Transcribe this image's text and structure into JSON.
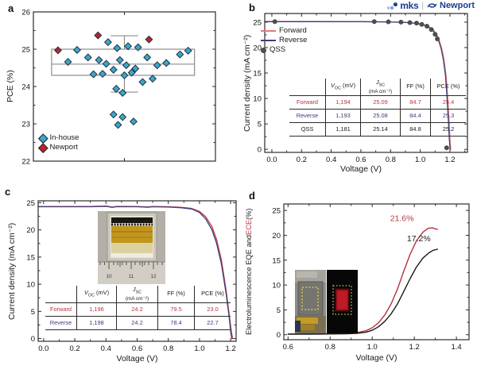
{
  "figure": {
    "panel_labels": {
      "a": "a",
      "b": "b",
      "c": "c",
      "d": "d"
    },
    "logo": {
      "mks_text": "mks",
      "separator": "|",
      "newport_text": "Newport",
      "color": "#1b3e8f"
    }
  },
  "chart_data": [
    {
      "id": "a",
      "type": "scatter",
      "ylabel": "PCE (%)",
      "xlabel": "",
      "xlim": [
        0,
        1
      ],
      "ylim": [
        22,
        26
      ],
      "yticks": [
        22,
        23,
        24,
        25,
        26
      ],
      "yminor": [
        22.5,
        23.5,
        24.5,
        25.5
      ],
      "xticks": [
        0.5
      ],
      "xlabels": false,
      "rect": {
        "l": 42,
        "t": 15,
        "r": 271,
        "b": 203
      },
      "box": {
        "left": 0.1,
        "right": 0.885,
        "center": 0.5,
        "cap": 0.075,
        "q1": 24.3,
        "median": 24.6,
        "q3": 25.0,
        "lo": 23.85,
        "hi": 25.36
      },
      "series": [
        {
          "name": "In-house",
          "marker": "diamond",
          "color": "#3ba6cf",
          "edge": "#22313b",
          "points": [
            [
              0.24,
              24.98
            ],
            [
              0.19,
              24.66
            ],
            [
              0.3,
              24.78
            ],
            [
              0.33,
              24.33
            ],
            [
              0.36,
              24.71
            ],
            [
              0.38,
              24.34
            ],
            [
              0.4,
              24.61
            ],
            [
              0.41,
              25.19
            ],
            [
              0.44,
              24.45
            ],
            [
              0.46,
              25.03
            ],
            [
              0.475,
              24.71
            ],
            [
              0.5,
              24.3
            ],
            [
              0.51,
              24.57
            ],
            [
              0.52,
              25.08
            ],
            [
              0.54,
              24.37
            ],
            [
              0.56,
              24.48
            ],
            [
              0.575,
              25.05
            ],
            [
              0.6,
              24.12
            ],
            [
              0.625,
              24.78
            ],
            [
              0.655,
              24.21
            ],
            [
              0.68,
              24.57
            ],
            [
              0.73,
              24.63
            ],
            [
              0.805,
              24.86
            ],
            [
              0.85,
              24.96
            ],
            [
              0.455,
              23.94
            ],
            [
              0.49,
              23.83
            ],
            [
              0.44,
              23.25
            ],
            [
              0.49,
              23.18
            ],
            [
              0.465,
              22.97
            ],
            [
              0.55,
              23.06
            ]
          ]
        },
        {
          "name": "Newport",
          "marker": "diamond",
          "color": "#c0222f",
          "edge": "#22313b",
          "points": [
            [
              0.135,
              24.97
            ],
            [
              0.355,
              25.37
            ],
            [
              0.635,
              25.26
            ]
          ]
        }
      ]
    },
    {
      "id": "b",
      "type": "line",
      "xlabel": "Voltage (V)",
      "ylabel": "Current density (mA cm⁻²)",
      "xlim": [
        -0.048,
        1.318
      ],
      "ylim": [
        -0.6,
        26.7
      ],
      "xticks": [
        0.0,
        0.2,
        0.4,
        0.6,
        0.8,
        1.0,
        1.2
      ],
      "xminor": [
        0.1,
        0.3,
        0.5,
        0.7,
        0.9,
        1.1,
        1.3
      ],
      "yticks": [
        0,
        5,
        10,
        15,
        20,
        25
      ],
      "yminor": [
        2.5,
        7.5,
        12.5,
        17.5,
        22.5
      ],
      "rect": {
        "l": 33,
        "t": 17,
        "r": 288,
        "b": 192
      },
      "series": [
        {
          "name": "Forward",
          "color": "#e0797e",
          "width": 1.4,
          "points": [
            [
              -0.048,
              25.12
            ],
            [
              0.2,
              25.12
            ],
            [
              0.4,
              25.11
            ],
            [
              0.6,
              25.1
            ],
            [
              0.75,
              25.07
            ],
            [
              0.85,
              25.0
            ],
            [
              0.92,
              24.92
            ],
            [
              0.97,
              24.78
            ],
            [
              1.014,
              24.58
            ],
            [
              1.049,
              24.25
            ],
            [
              1.079,
              23.7
            ],
            [
              1.104,
              22.9
            ],
            [
              1.124,
              21.8
            ],
            [
              1.144,
              19.9
            ],
            [
              1.159,
              17.8
            ],
            [
              1.174,
              14.5
            ],
            [
              1.184,
              10.5
            ],
            [
              1.194,
              5.5
            ],
            [
              1.2,
              2.0
            ],
            [
              1.205,
              0.0
            ]
          ]
        },
        {
          "name": "Reverse",
          "color": "#3e4076",
          "width": 1.3,
          "points": [
            [
              -0.048,
              25.1
            ],
            [
              0.2,
              25.1
            ],
            [
              0.4,
              25.1
            ],
            [
              0.6,
              25.09
            ],
            [
              0.75,
              25.05
            ],
            [
              0.85,
              24.98
            ],
            [
              0.92,
              24.9
            ],
            [
              0.97,
              24.76
            ],
            [
              1.01,
              24.55
            ],
            [
              1.045,
              24.22
            ],
            [
              1.075,
              23.65
            ],
            [
              1.1,
              22.85
            ],
            [
              1.12,
              21.75
            ],
            [
              1.14,
              19.85
            ],
            [
              1.155,
              17.7
            ],
            [
              1.17,
              14.4
            ],
            [
              1.18,
              10.4
            ],
            [
              1.19,
              5.4
            ],
            [
              1.196,
              1.9
            ],
            [
              1.201,
              0.0
            ]
          ]
        },
        {
          "name": "QSS",
          "marker": "circle",
          "color": "#4d4d4d",
          "points": [
            [
              0.02,
              25.1
            ],
            [
              0.69,
              25.1
            ],
            [
              0.785,
              25.07
            ],
            [
              0.87,
              25.0
            ],
            [
              0.93,
              24.9
            ],
            [
              0.975,
              24.8
            ],
            [
              1.01,
              24.55
            ],
            [
              1.045,
              24.2
            ],
            [
              1.075,
              23.55
            ],
            [
              1.1,
              22.6
            ],
            [
              1.115,
              21.7
            ],
            [
              1.178,
              0.3
            ]
          ]
        }
      ],
      "table": {
        "header": [
          {
            "text": ""
          },
          {
            "var": "V",
            "sub": "OC",
            "unit": " (mV)"
          },
          {
            "var": "J",
            "sub": "SC",
            "unit": "",
            "line2": "(mA cm⁻²)"
          },
          {
            "text": "FF (%)"
          },
          {
            "text": "PCE (%)"
          }
        ],
        "rows": [
          {
            "label": "Forward",
            "color": "#bf323c",
            "values": [
              "1,194",
              "25.09",
              "84.7",
              "25.4"
            ]
          },
          {
            "label": "Reverse",
            "color": "#3c3d7c",
            "values": [
              "1,193",
              "25.08",
              "84.4",
              "25.3"
            ]
          },
          {
            "label": "QSS",
            "color": "#1a1a1a",
            "values": [
              "1,181",
              "25.14",
              "84.8",
              "25.2"
            ]
          }
        ]
      }
    },
    {
      "id": "c",
      "type": "line",
      "xlabel": "Voltage (V)",
      "ylabel": "Current density (mA cm⁻²)",
      "xlim": [
        -0.035,
        1.235
      ],
      "ylim": [
        -0.5,
        25.35
      ],
      "xticks": [
        0.0,
        0.2,
        0.4,
        0.6,
        0.8,
        1.0,
        1.2
      ],
      "xminor": [
        0.1,
        0.3,
        0.5,
        0.7,
        0.9,
        1.1
      ],
      "yticks": [
        0,
        5,
        10,
        15,
        20,
        25
      ],
      "yminor": [
        2.5,
        7.5,
        12.5,
        17.5,
        22.5
      ],
      "rect": {
        "l": 48,
        "t": 21,
        "r": 297,
        "b": 198
      },
      "series": [
        {
          "name": "Forward",
          "color": "#c2434b",
          "width": 1.4,
          "points": [
            [
              -0.035,
              24.3
            ],
            [
              0.15,
              24.3
            ],
            [
              0.3,
              24.3
            ],
            [
              0.4,
              24.38
            ],
            [
              0.44,
              24.2
            ],
            [
              0.47,
              24.32
            ],
            [
              0.6,
              24.3
            ],
            [
              0.67,
              24.22
            ],
            [
              0.7,
              24.3
            ],
            [
              0.8,
              24.25
            ],
            [
              0.88,
              24.15
            ],
            [
              0.95,
              23.95
            ],
            [
              1.0,
              23.4
            ],
            [
              1.04,
              22.4
            ],
            [
              1.08,
              20.6
            ],
            [
              1.11,
              18.2
            ],
            [
              1.14,
              14.5
            ],
            [
              1.17,
              9.0
            ],
            [
              1.19,
              4.5
            ],
            [
              1.205,
              1.2
            ],
            [
              1.212,
              0.0
            ]
          ]
        },
        {
          "name": "Reverse",
          "color": "#3e4076",
          "width": 1.3,
          "points": [
            [
              -0.035,
              24.25
            ],
            [
              0.15,
              24.25
            ],
            [
              0.3,
              24.25
            ],
            [
              0.4,
              24.33
            ],
            [
              0.44,
              24.15
            ],
            [
              0.47,
              24.27
            ],
            [
              0.6,
              24.25
            ],
            [
              0.67,
              24.17
            ],
            [
              0.7,
              24.25
            ],
            [
              0.8,
              24.2
            ],
            [
              0.88,
              24.08
            ],
            [
              0.95,
              23.85
            ],
            [
              1.0,
              23.2
            ],
            [
              1.04,
              22.0
            ],
            [
              1.08,
              20.0
            ],
            [
              1.11,
              17.5
            ],
            [
              1.14,
              13.8
            ],
            [
              1.17,
              8.4
            ],
            [
              1.19,
              4.0
            ],
            [
              1.202,
              0.8
            ],
            [
              1.208,
              0.0
            ]
          ]
        }
      ],
      "table": {
        "header": [
          {
            "text": ""
          },
          {
            "var": "V",
            "sub": "OC",
            "unit": " (mV)"
          },
          {
            "var": "J",
            "sub": "SC",
            "unit": "",
            "line2": "(mA cm⁻²)"
          },
          {
            "text": "FF (%)"
          },
          {
            "text": "PCE (%)"
          }
        ],
        "rows": [
          {
            "label": "Forward",
            "color": "#bf323c",
            "values": [
              "1,196",
              "24.2",
              "79.5",
              "23.0"
            ]
          },
          {
            "label": "Reverse",
            "color": "#3c3d7c",
            "values": [
              "1,198",
              "24.2",
              "78.4",
              "22.7"
            ]
          }
        ]
      },
      "inset": {
        "ruler_numbers": [
          "10",
          "11",
          "12"
        ]
      }
    },
    {
      "id": "d",
      "type": "line",
      "xlabel": "Voltage (V)",
      "ylabel_parts": [
        {
          "text": "Electroluminescence EQE and ",
          "color": "#1a1a1a"
        },
        {
          "text": "ECE",
          "color": "#bf3540"
        },
        {
          "text": " (%)",
          "color": "#1a1a1a"
        }
      ],
      "xlim": [
        0.58,
        1.46
      ],
      "ylim": [
        -1,
        26.3
      ],
      "xticks": [
        0.6,
        0.8,
        1.0,
        1.2,
        1.4
      ],
      "xminor": [
        0.7,
        0.9,
        1.1,
        1.3
      ],
      "yticks": [
        0,
        5,
        10,
        15,
        20,
        25
      ],
      "yminor": [
        2.5,
        7.5,
        12.5,
        17.5,
        22.5
      ],
      "rect": {
        "l": 57,
        "t": 25,
        "r": 290,
        "b": 196
      },
      "series": [
        {
          "name": "ECE",
          "color": "#b4333e",
          "width": 1.4,
          "points": [
            [
              0.6,
              0.15
            ],
            [
              0.7,
              0.18
            ],
            [
              0.8,
              0.22
            ],
            [
              0.88,
              0.3
            ],
            [
              0.93,
              0.45
            ],
            [
              0.97,
              0.8
            ],
            [
              1.0,
              1.4
            ],
            [
              1.03,
              2.4
            ],
            [
              1.06,
              4.0
            ],
            [
              1.09,
              6.2
            ],
            [
              1.12,
              9.2
            ],
            [
              1.15,
              12.8
            ],
            [
              1.18,
              16.2
            ],
            [
              1.21,
              18.9
            ],
            [
              1.24,
              20.6
            ],
            [
              1.265,
              21.4
            ],
            [
              1.285,
              21.5
            ],
            [
              1.3,
              21.3
            ],
            [
              1.31,
              21.2
            ]
          ]
        },
        {
          "name": "EQE",
          "color": "#1a1a1a",
          "width": 1.4,
          "points": [
            [
              0.6,
              0.1
            ],
            [
              0.7,
              0.12
            ],
            [
              0.8,
              0.15
            ],
            [
              0.88,
              0.2
            ],
            [
              0.93,
              0.3
            ],
            [
              0.97,
              0.5
            ],
            [
              1.0,
              0.9
            ],
            [
              1.03,
              1.6
            ],
            [
              1.06,
              2.7
            ],
            [
              1.09,
              4.2
            ],
            [
              1.12,
              6.2
            ],
            [
              1.15,
              8.7
            ],
            [
              1.18,
              11.3
            ],
            [
              1.21,
              13.6
            ],
            [
              1.24,
              15.4
            ],
            [
              1.27,
              16.5
            ],
            [
              1.29,
              17.0
            ],
            [
              1.31,
              17.2
            ]
          ]
        }
      ],
      "annotations": [
        {
          "text": "21.6%",
          "x": 1.085,
          "y": 22.9,
          "color": "#bf3540"
        },
        {
          "text": "17.2%",
          "x": 1.165,
          "y": 18.8,
          "color": "#1a1a1a"
        }
      ]
    }
  ]
}
